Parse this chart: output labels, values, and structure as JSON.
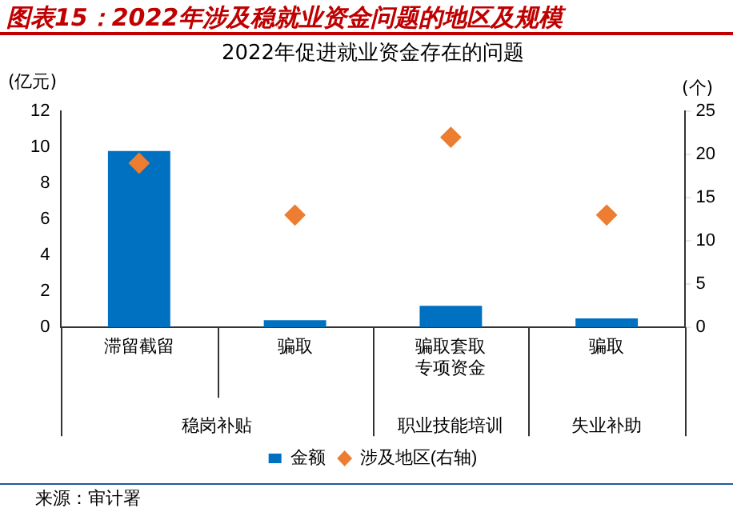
{
  "chart_data": {
    "type": "bar",
    "title": "图表15：2022年涉及稳就业资金问题的地区及规模",
    "subtitle": "2022年促进就业资金存在的问题",
    "ylabel": "(亿元)",
    "y2label": "(个)",
    "categories": [
      "滞留截留",
      "骗取",
      "骗取套取专项资金",
      "骗取"
    ],
    "series": [
      {
        "name": "金额",
        "color": "#0070c0",
        "values": [
          9.8,
          0.4,
          1.2,
          0.5
        ]
      },
      {
        "name": "涉及地区(右轴)",
        "type": "scatter",
        "color": "#ed7d31",
        "axis": "y2",
        "marker": "diamond",
        "values": [
          19,
          13,
          22,
          13
        ]
      }
    ],
    "ylim": [
      0,
      12
    ],
    "yticks": [
      0,
      2,
      4,
      6,
      8,
      10,
      12
    ],
    "y2lim": [
      0,
      25
    ],
    "y2ticks": [
      0,
      5,
      10,
      15,
      20,
      25
    ],
    "grid": false,
    "legend": "bottom",
    "annotations": [
      "稳岗补贴",
      "职业技能培训",
      "失业补助",
      "来源：审计署"
    ]
  }
}
